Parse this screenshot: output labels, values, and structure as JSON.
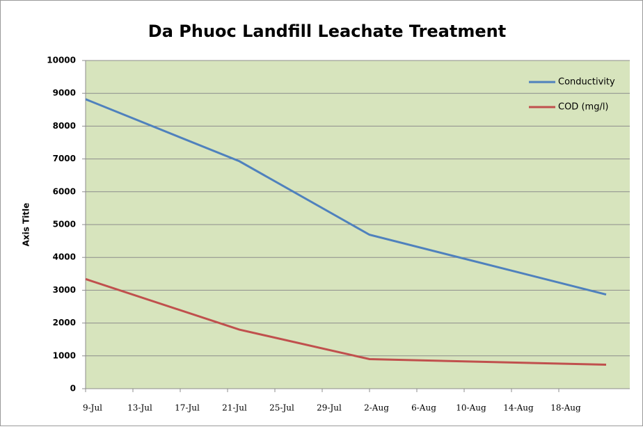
{
  "chart_data": {
    "type": "line",
    "title": "Da Phuoc Landfill Leachate Treatment",
    "y_label": "Axis Title",
    "x": [
      190,
      203,
      214,
      234
    ],
    "xlim": [
      190,
      236
    ],
    "xticks": [
      {
        "value": 190,
        "label": "9-Jul"
      },
      {
        "value": 194,
        "label": "13-Jul"
      },
      {
        "value": 198,
        "label": "17-Jul"
      },
      {
        "value": 202,
        "label": "21-Jul"
      },
      {
        "value": 206,
        "label": "25-Jul"
      },
      {
        "value": 210,
        "label": "29-Jul"
      },
      {
        "value": 214,
        "label": "2-Aug"
      },
      {
        "value": 218,
        "label": "6-Aug"
      },
      {
        "value": 222,
        "label": "10-Aug"
      },
      {
        "value": 226,
        "label": "14-Aug"
      },
      {
        "value": 230,
        "label": "18-Aug"
      }
    ],
    "series": [
      {
        "name": "Conductivity",
        "color": "#4f81bd",
        "values": [
          8820,
          6930,
          4690,
          2870
        ]
      },
      {
        "name": "COD (mg/l)",
        "color": "#c0504d",
        "values": [
          3340,
          1800,
          900,
          730
        ]
      }
    ],
    "ylim": [
      0,
      10000
    ],
    "yticks": [
      0,
      1000,
      2000,
      3000,
      4000,
      5000,
      6000,
      7000,
      8000,
      9000,
      10000
    ],
    "grid": true,
    "legend": "top-right"
  }
}
